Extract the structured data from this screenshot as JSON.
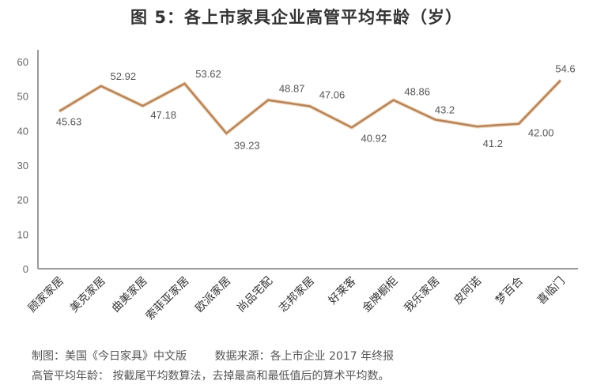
{
  "title": "图 5：各上市家具企业高管平均年龄（岁）",
  "chart_data": {
    "type": "line",
    "title": "图 5：各上市家具企业高管平均年龄（岁）",
    "xlabel": "",
    "ylabel": "",
    "ylim": [
      0,
      60
    ],
    "yticks": [
      0,
      10,
      20,
      30,
      40,
      50,
      60
    ],
    "grid": false,
    "legend": null,
    "categories": [
      "顾家家居",
      "美克家居",
      "曲美家居",
      "索菲亚家居",
      "欧派家居",
      "尚品宅配",
      "志邦家居",
      "好莱客",
      "金牌橱柜",
      "我乐家居",
      "皮阿诺",
      "梦百合",
      "喜临门"
    ],
    "series": [
      {
        "name": "高管平均年龄",
        "color": "#b5845a",
        "values": [
          45.63,
          52.92,
          47.18,
          53.62,
          39.23,
          48.87,
          47.06,
          40.92,
          48.86,
          43.2,
          41.2,
          42.0,
          54.6
        ],
        "labels": [
          "45.63",
          "52.92",
          "47.18",
          "53.62",
          "39.23",
          "48.87",
          "47.06",
          "40.92",
          "48.86",
          "43.2",
          "41.2",
          "42.00",
          "54.6"
        ]
      }
    ]
  },
  "footnotes": {
    "line1": "制图：美国《今日家具》中文版        数据来源：各上市企业 2017 年终报",
    "line2": "高管平均年龄： 按截尾平均数算法，去掉最高和最低值后的算术平均数。"
  }
}
